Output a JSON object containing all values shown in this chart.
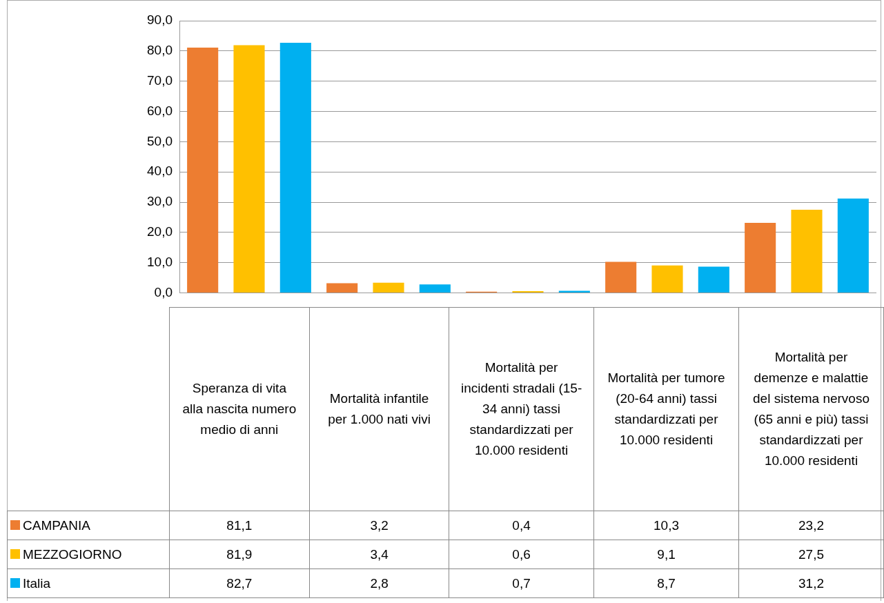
{
  "chart_data": {
    "type": "bar",
    "categories": [
      "Speranza di vita alla nascita numero medio di anni",
      "Mortalità infantile per 1.000 nati vivi",
      "Mortalità per incidenti stradali (15-34 anni) tassi standardizzati per 10.000 residenti",
      "Mortalità per tumore (20-64 anni) tassi standardizzati per 10.000 residenti",
      "Mortalità per demenze e malattie del sistema nervoso (65 anni e più) tassi standardizzati per 10.000 residenti"
    ],
    "series": [
      {
        "name": "CAMPANIA",
        "color": "#ed7d31",
        "values": [
          81.1,
          3.2,
          0.4,
          10.3,
          23.2
        ],
        "value_labels": [
          "81,1",
          "3,2",
          "0,4",
          "10,3",
          "23,2"
        ]
      },
      {
        "name": "MEZZOGIORNO",
        "color": "#ffc000",
        "values": [
          81.9,
          3.4,
          0.6,
          9.1,
          27.5
        ],
        "value_labels": [
          "81,9",
          "3,4",
          "0,6",
          "9,1",
          "27,5"
        ]
      },
      {
        "name": "Italia",
        "color": "#00b0f0",
        "values": [
          82.7,
          2.8,
          0.7,
          8.7,
          31.2
        ],
        "value_labels": [
          "82,7",
          "2,8",
          "0,7",
          "8,7",
          "31,2"
        ]
      }
    ],
    "ylim": [
      0,
      90
    ],
    "yticks": [
      {
        "value": 0,
        "label": "0,0"
      },
      {
        "value": 10,
        "label": "10,0"
      },
      {
        "value": 20,
        "label": "20,0"
      },
      {
        "value": 30,
        "label": "30,0"
      },
      {
        "value": 40,
        "label": "40,0"
      },
      {
        "value": 50,
        "label": "50,0"
      },
      {
        "value": 60,
        "label": "60,0"
      },
      {
        "value": 70,
        "label": "70,0"
      },
      {
        "value": 80,
        "label": "80,0"
      },
      {
        "value": 90,
        "label": "90,0"
      }
    ],
    "grid": "y",
    "legend": "bottom left"
  }
}
